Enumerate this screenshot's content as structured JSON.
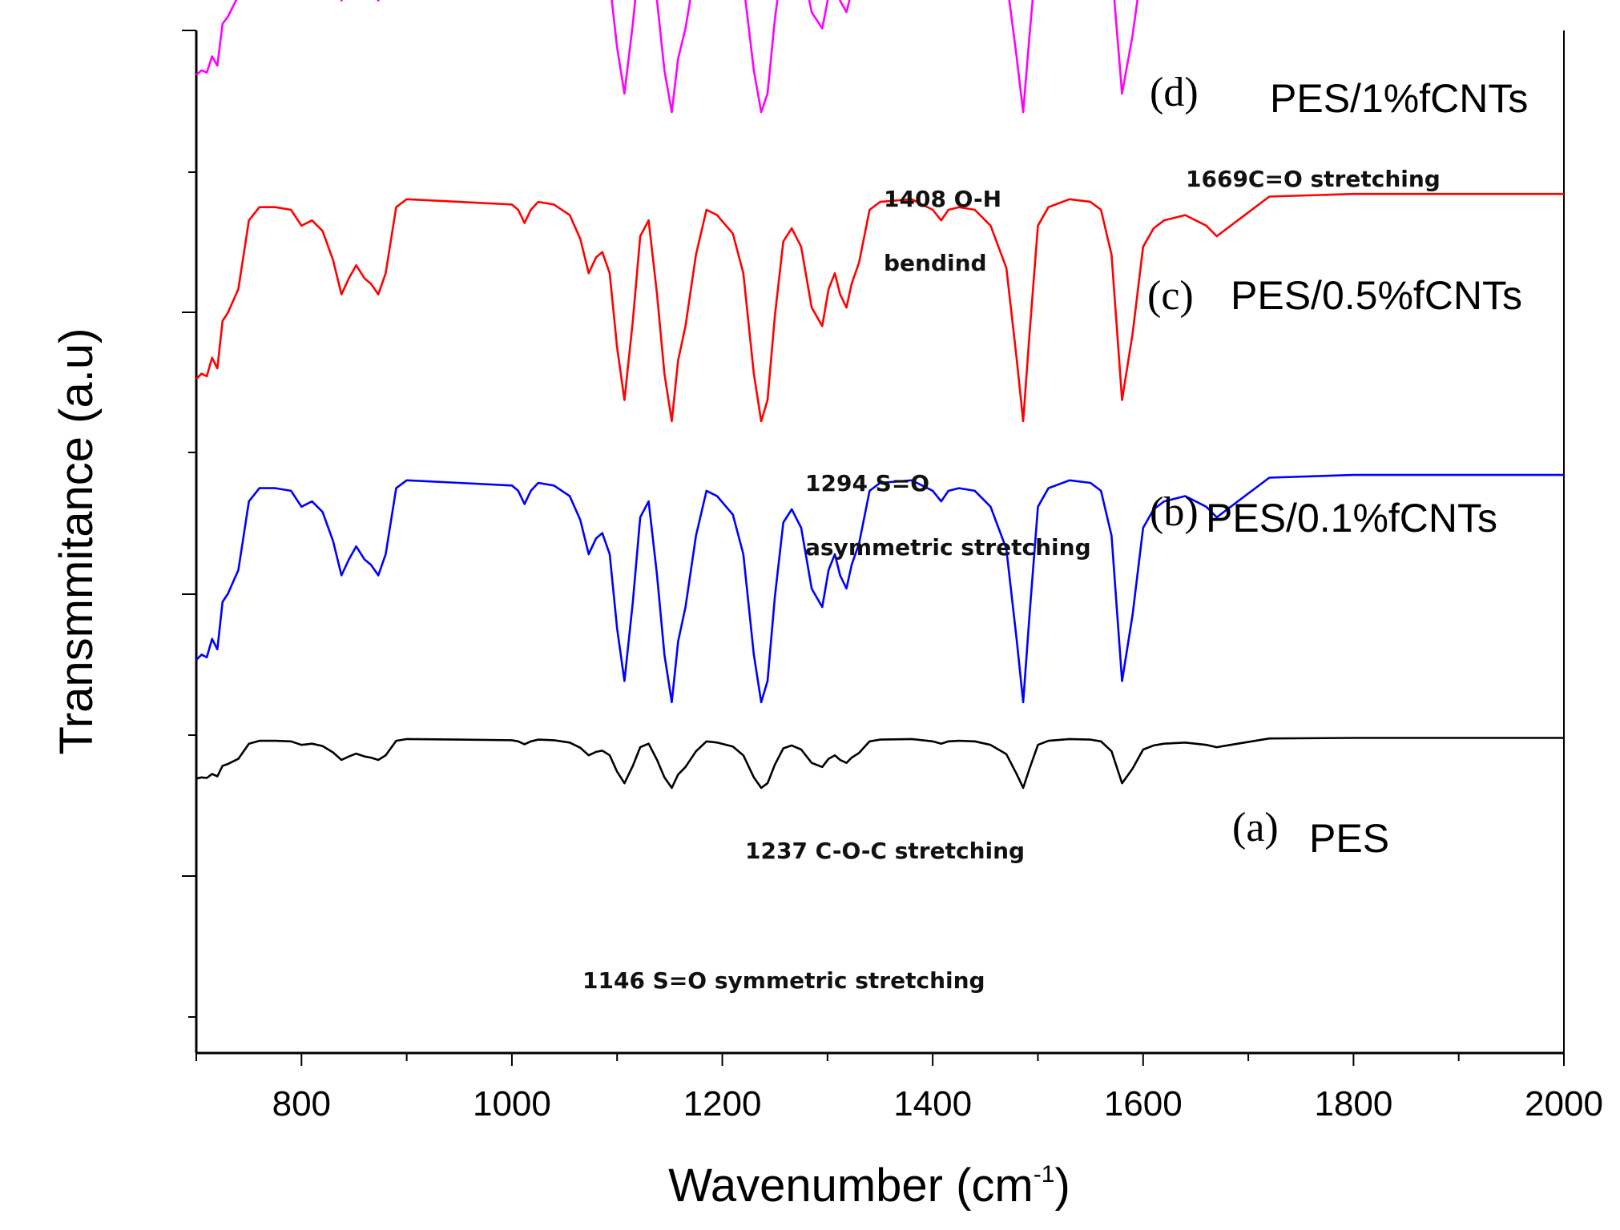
{
  "chart_data": {
    "type": "line",
    "title": "",
    "xlabel": "Wavenumber (cm",
    "xlabel_sup": "-1",
    "xlabel_close": ")",
    "ylabel": "Transmmitance (a.u)",
    "xlim": [
      700,
      2000
    ],
    "x_ticks": [
      800,
      1000,
      1200,
      1400,
      1600,
      1800,
      2000
    ],
    "x_tick_labels": [
      "800",
      "1000",
      "1200",
      "1400",
      "1600",
      "1800",
      "2000"
    ],
    "grid": false,
    "y_ticks_labeled": false,
    "series": [
      {
        "id": "a",
        "letter": "(a)",
        "name": "PES",
        "color": "#000000",
        "scale": 0.22,
        "baseline": 0.05
      },
      {
        "id": "b",
        "letter": "(b)",
        "name": "PES/0.1%fCNTs",
        "color": "#0000ff",
        "scale": 1.0,
        "baseline": 1.0
      },
      {
        "id": "c",
        "letter": "(c)",
        "name": "PES/0.5%fCNTs",
        "color": "#ff0000",
        "scale": 1.0,
        "baseline": 2.0
      },
      {
        "id": "d",
        "letter": "(d)",
        "name": "PES/1%fCNTs",
        "color": "#ff00ff",
        "scale": 0.88,
        "baseline": 3.0
      }
    ],
    "profile": {
      "x": [
        700,
        705,
        710,
        715,
        720,
        725,
        730,
        740,
        750,
        760,
        775,
        790,
        800,
        810,
        820,
        830,
        838,
        845,
        852,
        860,
        866,
        873,
        880,
        890,
        900,
        950,
        1000,
        1006,
        1012,
        1018,
        1025,
        1040,
        1055,
        1065,
        1073,
        1080,
        1086,
        1093,
        1100,
        1107,
        1115,
        1122,
        1130,
        1138,
        1145,
        1152,
        1158,
        1165,
        1175,
        1185,
        1195,
        1210,
        1220,
        1230,
        1237,
        1243,
        1250,
        1258,
        1266,
        1275,
        1285,
        1295,
        1301,
        1307,
        1312,
        1318,
        1323,
        1330,
        1340,
        1350,
        1380,
        1400,
        1408,
        1415,
        1425,
        1440,
        1455,
        1470,
        1480,
        1486,
        1492,
        1500,
        1510,
        1530,
        1550,
        1560,
        1570,
        1580,
        1590,
        1600,
        1610,
        1620,
        1640,
        1660,
        1670,
        1690,
        1720,
        1800,
        1900,
        2000
      ],
      "y": [
        0.28,
        0.3,
        0.29,
        0.36,
        0.32,
        0.5,
        0.53,
        0.62,
        0.88,
        0.93,
        0.93,
        0.92,
        0.86,
        0.88,
        0.84,
        0.73,
        0.6,
        0.66,
        0.71,
        0.66,
        0.64,
        0.6,
        0.68,
        0.93,
        0.96,
        0.95,
        0.94,
        0.92,
        0.87,
        0.92,
        0.95,
        0.94,
        0.9,
        0.81,
        0.68,
        0.74,
        0.76,
        0.68,
        0.4,
        0.2,
        0.5,
        0.82,
        0.88,
        0.6,
        0.3,
        0.12,
        0.35,
        0.48,
        0.75,
        0.92,
        0.9,
        0.83,
        0.68,
        0.3,
        0.12,
        0.2,
        0.52,
        0.8,
        0.85,
        0.78,
        0.55,
        0.48,
        0.62,
        0.68,
        0.6,
        0.55,
        0.64,
        0.72,
        0.92,
        0.95,
        0.96,
        0.92,
        0.88,
        0.92,
        0.93,
        0.92,
        0.86,
        0.7,
        0.35,
        0.12,
        0.45,
        0.86,
        0.93,
        0.96,
        0.95,
        0.92,
        0.75,
        0.2,
        0.45,
        0.78,
        0.85,
        0.88,
        0.9,
        0.86,
        0.82,
        0.88,
        0.97,
        0.98,
        0.98,
        0.98
      ]
    },
    "series_labels": [
      {
        "series": "d",
        "letter": "(d)",
        "name": "PES/1%fCNTs"
      },
      {
        "series": "c",
        "letter": "(c)",
        "name": "PES/0.5%fCNTs"
      },
      {
        "series": "b",
        "letter": "(b)",
        "name": "PES/0.1%fCNTs"
      },
      {
        "series": "a",
        "letter": "(a)",
        "name": "PES"
      }
    ],
    "annotations": [
      {
        "id": "1408-oh",
        "text": "1408 O-H",
        "x": 1408
      },
      {
        "id": "1408-bend",
        "text": "bendind",
        "x": 1408
      },
      {
        "id": "1669",
        "text": "1669C=O stretching",
        "x": 1669
      },
      {
        "id": "1294-so",
        "text": "1294 S=O",
        "x": 1294
      },
      {
        "id": "1294-asym",
        "text": "asymmetric  stretching",
        "x": 1294
      },
      {
        "id": "1237",
        "text": "1237 C-O-C stretching",
        "x": 1237
      },
      {
        "id": "1146",
        "text": "1146 S=O symmetric stretching",
        "x": 1146
      }
    ]
  }
}
